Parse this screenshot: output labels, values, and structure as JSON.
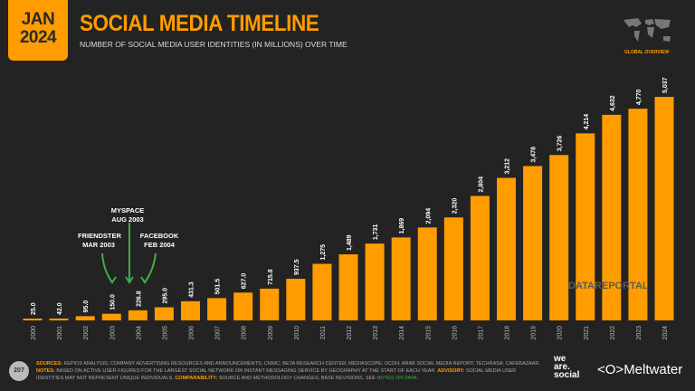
{
  "header": {
    "date_month": "JAN",
    "date_year": "2024",
    "title": "SOCIAL MEDIA TIMELINE",
    "subtitle": "NUMBER OF SOCIAL MEDIA USER IDENTITIES (IN MILLIONS) OVER TIME",
    "region": "GLOBAL OVERVIEW"
  },
  "watermark": "DATAREPORTAL",
  "annotations": [
    {
      "name": "FRIENDSTER",
      "date": "MAR 2003"
    },
    {
      "name": "MYSPACE",
      "date": "AUG 2003"
    },
    {
      "name": "FACEBOOK",
      "date": "FEB 2004"
    }
  ],
  "chart_data": {
    "type": "bar",
    "title": "SOCIAL MEDIA TIMELINE",
    "categories": [
      "2000",
      "2001",
      "2002",
      "2003",
      "2004",
      "2005",
      "2006",
      "2007",
      "2008",
      "2009",
      "2010",
      "2011",
      "2012",
      "2013",
      "2014",
      "2015",
      "2016",
      "2017",
      "2018",
      "2019",
      "2020",
      "2021",
      "2022",
      "2023",
      "2024"
    ],
    "values": [
      25.0,
      42.0,
      95.0,
      150.0,
      226.8,
      295.0,
      431.3,
      501.5,
      627.0,
      715.8,
      937.5,
      1275,
      1489,
      1731,
      1869,
      2094,
      2320,
      2804,
      3212,
      3478,
      3726,
      4214,
      4632,
      4770,
      5037
    ],
    "labels": [
      "25.0",
      "42.0",
      "95.0",
      "150.0",
      "226.8",
      "295.0",
      "431.3",
      "501.5",
      "627.0",
      "715.8",
      "937.5",
      "1,275",
      "1,489",
      "1,731",
      "1,869",
      "2,094",
      "2,320",
      "2,804",
      "3,212",
      "3,478",
      "3,726",
      "4,214",
      "4,632",
      "4,770",
      "5,037"
    ],
    "ylim": [
      0,
      5037
    ],
    "grid": false,
    "bar_color": "#ff9c00",
    "arrow_color": "#3cb043"
  },
  "footer": {
    "page": "207",
    "sources_label": "SOURCES:",
    "sources": "KEPIOS ANALYSIS; COMPANY ADVERTISING RESOURCES AND ANNOUNCEMENTS; CNNIC; BETA RESEARCH CENTER; MEDIASCOPE; OCDH; ARAB SOCIAL MEDIA REPORT; TECHRASA; CAFEBAZAAR.",
    "notes_label": "NOTES:",
    "notes": "BASED ON ACTIVE USER FIGURES FOR THE LARGEST SOCIAL NETWORK OR INSTANT MESSAGING SERVICE BY GEOGRAPHY AT THE START OF EACH YEAR.",
    "advisory_label": "ADVISORY:",
    "advisory": "SOCIAL MEDIA USER IDENTITIES MAY NOT REPRESENT UNIQUE INDIVIDUALS.",
    "comparability_label": "COMPARABILITY:",
    "comparability": "SOURCE AND METHODOLOGY CHANGES; BASE REVISIONS. SEE",
    "notes_link": "NOTES ON DATA.",
    "logo_we": "we",
    "logo_are": "are.",
    "logo_social": "social",
    "logo_meltwater": "Meltwater"
  }
}
